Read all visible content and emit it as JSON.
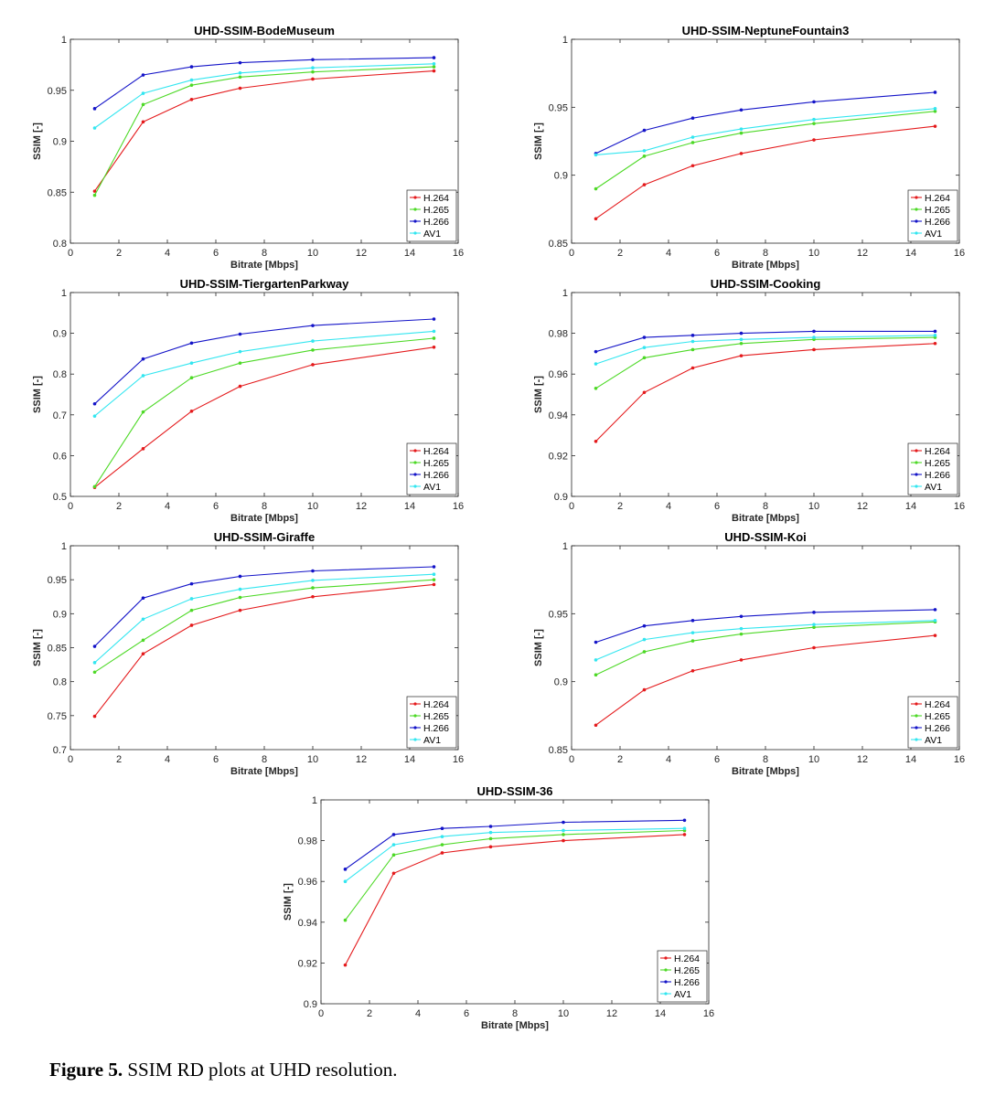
{
  "caption": {
    "label": "Figure 5.",
    "text": "SSIM RD plots at UHD resolution."
  },
  "colors": {
    "H.264": "#e41a1c",
    "H.265": "#4dd926",
    "H.266": "#1414c8",
    "AV1": "#33e6f0"
  },
  "chart_data": [
    {
      "type": "line",
      "title": "UHD-SSIM-BodeMuseum",
      "xlabel": "Bitrate [Mbps]",
      "ylabel": "SSIM [-]",
      "xlim": [
        0,
        16
      ],
      "ylim": [
        0.8,
        1
      ],
      "xticks": [
        0,
        2,
        4,
        6,
        8,
        10,
        12,
        14,
        16
      ],
      "yticks": [
        0.8,
        0.85,
        0.9,
        0.95,
        1
      ],
      "ytick_labels": [
        "0.8",
        "0.85",
        "0.9",
        "0.95",
        "1"
      ],
      "legend": "bottom-right",
      "x": [
        1,
        3,
        5,
        7,
        10,
        15
      ],
      "series": [
        {
          "name": "H.264",
          "values": [
            0.851,
            0.919,
            0.941,
            0.952,
            0.961,
            0.969
          ]
        },
        {
          "name": "H.265",
          "values": [
            0.847,
            0.936,
            0.955,
            0.963,
            0.968,
            0.973
          ]
        },
        {
          "name": "H.266",
          "values": [
            0.932,
            0.965,
            0.973,
            0.977,
            0.98,
            0.982
          ]
        },
        {
          "name": "AV1",
          "values": [
            0.913,
            0.947,
            0.96,
            0.967,
            0.972,
            0.976
          ]
        }
      ]
    },
    {
      "type": "line",
      "title": "UHD-SSIM-NeptuneFountain3",
      "xlabel": "Bitrate [Mbps]",
      "ylabel": "SSIM [-]",
      "xlim": [
        0,
        16
      ],
      "ylim": [
        0.85,
        1
      ],
      "xticks": [
        0,
        2,
        4,
        6,
        8,
        10,
        12,
        14,
        16
      ],
      "yticks": [
        0.85,
        0.9,
        0.95,
        1
      ],
      "ytick_labels": [
        "0.85",
        "0.9",
        "0.95",
        "1"
      ],
      "legend": "bottom-right",
      "x": [
        1,
        3,
        5,
        7,
        10,
        15
      ],
      "series": [
        {
          "name": "H.264",
          "values": [
            0.868,
            0.893,
            0.907,
            0.916,
            0.926,
            0.936
          ]
        },
        {
          "name": "H.265",
          "values": [
            0.89,
            0.914,
            0.924,
            0.931,
            0.938,
            0.947
          ]
        },
        {
          "name": "H.266",
          "values": [
            0.916,
            0.933,
            0.942,
            0.948,
            0.954,
            0.961
          ]
        },
        {
          "name": "AV1",
          "values": [
            0.915,
            0.918,
            0.928,
            0.934,
            0.941,
            0.949
          ]
        }
      ]
    },
    {
      "type": "line",
      "title": "UHD-SSIM-TiergartenParkway",
      "xlabel": "Bitrate [Mbps]",
      "ylabel": "SSIM [-]",
      "xlim": [
        0,
        16
      ],
      "ylim": [
        0.5,
        1
      ],
      "xticks": [
        0,
        2,
        4,
        6,
        8,
        10,
        12,
        14,
        16
      ],
      "yticks": [
        0.5,
        0.6,
        0.7,
        0.8,
        0.9,
        1
      ],
      "ytick_labels": [
        "0.5",
        "0.6",
        "0.7",
        "0.8",
        "0.9",
        "1"
      ],
      "legend": "bottom-right",
      "x": [
        1,
        3,
        5,
        7,
        10,
        15
      ],
      "series": [
        {
          "name": "H.264",
          "values": [
            0.522,
            0.617,
            0.709,
            0.77,
            0.823,
            0.866
          ]
        },
        {
          "name": "H.265",
          "values": [
            0.524,
            0.707,
            0.791,
            0.827,
            0.859,
            0.888
          ]
        },
        {
          "name": "H.266",
          "values": [
            0.727,
            0.837,
            0.876,
            0.898,
            0.919,
            0.935
          ]
        },
        {
          "name": "AV1",
          "values": [
            0.697,
            0.796,
            0.827,
            0.855,
            0.881,
            0.905
          ]
        }
      ]
    },
    {
      "type": "line",
      "title": "UHD-SSIM-Cooking",
      "xlabel": "Bitrate [Mbps]",
      "ylabel": "SSIM [-]",
      "xlim": [
        0,
        16
      ],
      "ylim": [
        0.9,
        1
      ],
      "xticks": [
        0,
        2,
        4,
        6,
        8,
        10,
        12,
        14,
        16
      ],
      "yticks": [
        0.9,
        0.92,
        0.94,
        0.96,
        0.98,
        1
      ],
      "ytick_labels": [
        "0.9",
        "0.92",
        "0.94",
        "0.96",
        "0.98",
        "1"
      ],
      "legend": "bottom-right",
      "x": [
        1,
        3,
        5,
        7,
        10,
        15
      ],
      "series": [
        {
          "name": "H.264",
          "values": [
            0.927,
            0.951,
            0.963,
            0.969,
            0.972,
            0.975
          ]
        },
        {
          "name": "H.265",
          "values": [
            0.953,
            0.968,
            0.972,
            0.975,
            0.977,
            0.978
          ]
        },
        {
          "name": "H.266",
          "values": [
            0.971,
            0.978,
            0.979,
            0.98,
            0.981,
            0.981
          ]
        },
        {
          "name": "AV1",
          "values": [
            0.965,
            0.973,
            0.976,
            0.977,
            0.978,
            0.979
          ]
        }
      ]
    },
    {
      "type": "line",
      "title": "UHD-SSIM-Giraffe",
      "xlabel": "Bitrate [Mbps]",
      "ylabel": "SSIM [-]",
      "xlim": [
        0,
        16
      ],
      "ylim": [
        0.7,
        1
      ],
      "xticks": [
        0,
        2,
        4,
        6,
        8,
        10,
        12,
        14,
        16
      ],
      "yticks": [
        0.7,
        0.75,
        0.8,
        0.85,
        0.9,
        0.95,
        1
      ],
      "ytick_labels": [
        "0.7",
        "0.75",
        "0.8",
        "0.85",
        "0.9",
        "0.95",
        "1"
      ],
      "legend": "bottom-right",
      "x": [
        1,
        3,
        5,
        7,
        10,
        15
      ],
      "series": [
        {
          "name": "H.264",
          "values": [
            0.749,
            0.841,
            0.883,
            0.905,
            0.925,
            0.943
          ]
        },
        {
          "name": "H.265",
          "values": [
            0.814,
            0.861,
            0.905,
            0.924,
            0.938,
            0.95
          ]
        },
        {
          "name": "H.266",
          "values": [
            0.852,
            0.923,
            0.944,
            0.955,
            0.963,
            0.969
          ]
        },
        {
          "name": "AV1",
          "values": [
            0.828,
            0.892,
            0.922,
            0.936,
            0.949,
            0.958
          ]
        }
      ]
    },
    {
      "type": "line",
      "title": "UHD-SSIM-Koi",
      "xlabel": "Bitrate [Mbps]",
      "ylabel": "SSIM [-]",
      "xlim": [
        0,
        16
      ],
      "ylim": [
        0.85,
        1
      ],
      "xticks": [
        0,
        2,
        4,
        6,
        8,
        10,
        12,
        14,
        16
      ],
      "yticks": [
        0.85,
        0.9,
        0.95,
        1
      ],
      "ytick_labels": [
        "0.85",
        "0.9",
        "0.95",
        "1"
      ],
      "legend": "bottom-right",
      "x": [
        1,
        3,
        5,
        7,
        10,
        15
      ],
      "series": [
        {
          "name": "H.264",
          "values": [
            0.868,
            0.894,
            0.908,
            0.916,
            0.925,
            0.934
          ]
        },
        {
          "name": "H.265",
          "values": [
            0.905,
            0.922,
            0.93,
            0.935,
            0.94,
            0.944
          ]
        },
        {
          "name": "H.266",
          "values": [
            0.929,
            0.941,
            0.945,
            0.948,
            0.951,
            0.953
          ]
        },
        {
          "name": "AV1",
          "values": [
            0.916,
            0.931,
            0.936,
            0.939,
            0.942,
            0.945
          ]
        }
      ]
    },
    {
      "type": "line",
      "title": "UHD-SSIM-36",
      "xlabel": "Bitrate [Mbps]",
      "ylabel": "SSIM [-]",
      "xlim": [
        0,
        16
      ],
      "ylim": [
        0.9,
        1
      ],
      "xticks": [
        0,
        2,
        4,
        6,
        8,
        10,
        12,
        14,
        16
      ],
      "yticks": [
        0.9,
        0.92,
        0.94,
        0.96,
        0.98,
        1
      ],
      "ytick_labels": [
        "0.9",
        "0.92",
        "0.94",
        "0.96",
        "0.98",
        "1"
      ],
      "legend": "bottom-right",
      "x": [
        1,
        3,
        5,
        7,
        10,
        15
      ],
      "series": [
        {
          "name": "H.264",
          "values": [
            0.919,
            0.964,
            0.974,
            0.977,
            0.98,
            0.983
          ]
        },
        {
          "name": "H.265",
          "values": [
            0.941,
            0.973,
            0.978,
            0.981,
            0.983,
            0.985
          ]
        },
        {
          "name": "H.266",
          "values": [
            0.966,
            0.983,
            0.986,
            0.987,
            0.989,
            0.99
          ]
        },
        {
          "name": "AV1",
          "values": [
            0.96,
            0.978,
            0.982,
            0.984,
            0.985,
            0.986
          ]
        }
      ]
    }
  ]
}
